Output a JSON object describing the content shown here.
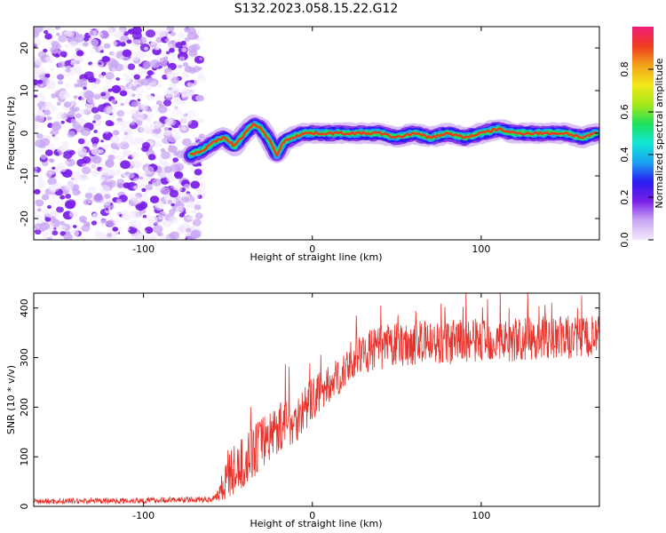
{
  "title": "S132.2023.058.15.22.G12",
  "colors": {
    "snr_line": "#e8322b",
    "scatter": "#8a33e6",
    "colormap": [
      "#f3eafc",
      "#c9a6f3",
      "#7a1fe8",
      "#2a1cf0",
      "#1aa3f2",
      "#12e6d5",
      "#1fe05a",
      "#a8e81a",
      "#f2e81a",
      "#f2a21a",
      "#ee3b1f",
      "#f01e7c"
    ]
  },
  "chart_data": [
    {
      "type": "heatmap",
      "xlabel": "Height of straight line (km)",
      "ylabel": "Frequency (Hz)",
      "xlim": [
        -165,
        170
      ],
      "ylim": [
        -25,
        25
      ],
      "xticks": [
        -100,
        0,
        100
      ],
      "yticks": [
        -20,
        -10,
        0,
        10,
        20
      ],
      "noise_region_x": [
        -165,
        -65
      ],
      "ridge": {
        "x": [
          -72,
          -65,
          -58,
          -52,
          -46,
          -40,
          -35,
          -30,
          -25,
          -21,
          -17,
          -12,
          -5,
          0,
          10,
          20,
          30,
          40,
          50,
          60,
          70,
          80,
          90,
          100,
          110,
          120,
          130,
          140,
          150,
          160,
          168
        ],
        "freq": [
          -5,
          -4,
          -2,
          -1,
          -3,
          0,
          2,
          1,
          -2,
          -5,
          -2,
          -1,
          0,
          0,
          0,
          0,
          0,
          0,
          -1,
          0,
          -1,
          0,
          -1,
          0,
          1,
          0,
          0,
          0,
          0,
          -1,
          0
        ]
      },
      "colorbar": {
        "label": "Normalized spectral amplitude",
        "range": [
          0,
          1
        ],
        "ticks": [
          "0.0",
          "0.2",
          "0.4",
          "0.6",
          "0.8"
        ]
      }
    },
    {
      "type": "line",
      "xlabel": "Height of straight line (km)",
      "ylabel": "SNR (10 * v/v)",
      "xlim": [
        -165,
        170
      ],
      "ylim": [
        0,
        430
      ],
      "xticks": [
        -100,
        0,
        100
      ],
      "yticks": [
        0,
        100,
        200,
        300,
        400
      ],
      "envelope": {
        "x": [
          -165,
          -100,
          -60,
          -56,
          -50,
          -40,
          -30,
          -20,
          -10,
          0,
          10,
          20,
          30,
          40,
          60,
          80,
          100,
          120,
          140,
          160,
          170
        ],
        "y": [
          10,
          12,
          14,
          25,
          60,
          90,
          130,
          160,
          175,
          215,
          245,
          275,
          310,
          320,
          330,
          330,
          335,
          335,
          340,
          340,
          340
        ]
      },
      "spread": {
        "x": [
          -165,
          -58,
          -50,
          -30,
          0,
          20,
          40,
          170
        ],
        "y": [
          6,
          6,
          50,
          55,
          45,
          35,
          45,
          45
        ]
      }
    }
  ]
}
